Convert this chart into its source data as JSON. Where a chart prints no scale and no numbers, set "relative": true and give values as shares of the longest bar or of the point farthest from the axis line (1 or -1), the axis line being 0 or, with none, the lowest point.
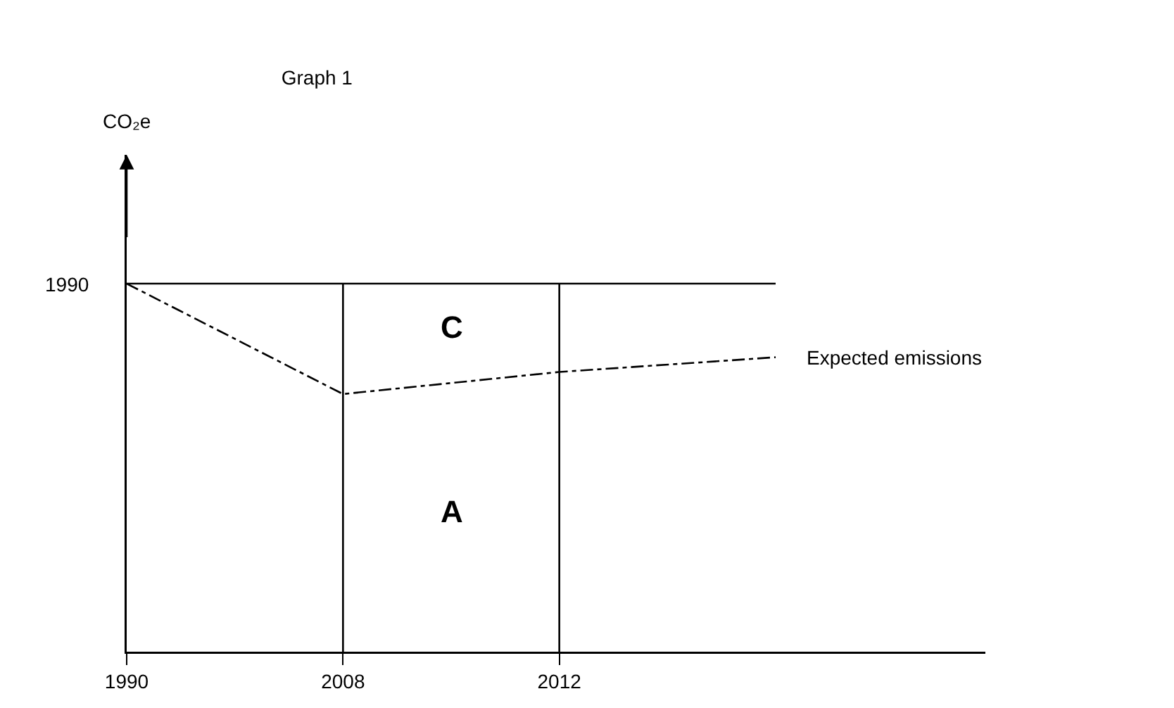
{
  "chart_data": {
    "type": "line",
    "title": "Graph 1",
    "relative": true,
    "categories": [
      "1990",
      "2008",
      "2012",
      null
    ],
    "series": [
      {
        "name": "1990",
        "color": "#000000",
        "values": [
          1,
          1,
          1,
          1
        ],
        "line_style": "solid"
      },
      {
        "name": "Expected emissions",
        "color": "#000000",
        "values": [
          1,
          0.7,
          0.76,
          0.8
        ],
        "line_style": "dashed"
      }
    ],
    "ref_lines": [
      {
        "axis": "x",
        "value": "2008",
        "color": "#000000",
        "line_style": "solid"
      },
      {
        "axis": "x",
        "value": "2012",
        "color": "#000000",
        "line_style": "solid"
      }
    ],
    "annotations": [
      "CO₂e",
      "C",
      "A"
    ],
    "legend": false,
    "grid": false,
    "marker": "none"
  }
}
